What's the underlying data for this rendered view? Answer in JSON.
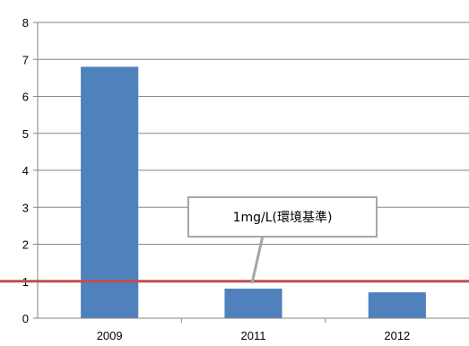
{
  "chart_data": {
    "type": "bar",
    "title": "",
    "xlabel": "",
    "ylabel": "",
    "categories": [
      "2009",
      "2011",
      "2012"
    ],
    "values": [
      6.8,
      0.8,
      0.7
    ],
    "ylim": [
      0,
      8
    ],
    "yticks": [
      "0",
      "1",
      "2",
      "3",
      "4",
      "5",
      "6",
      "7",
      "8"
    ],
    "grid": true,
    "legend": "none",
    "bar_color": "#4F81BD",
    "reference_line": {
      "value": 1,
      "color": "#C0504D",
      "annotation": "1mg/L(環境基準)"
    }
  }
}
